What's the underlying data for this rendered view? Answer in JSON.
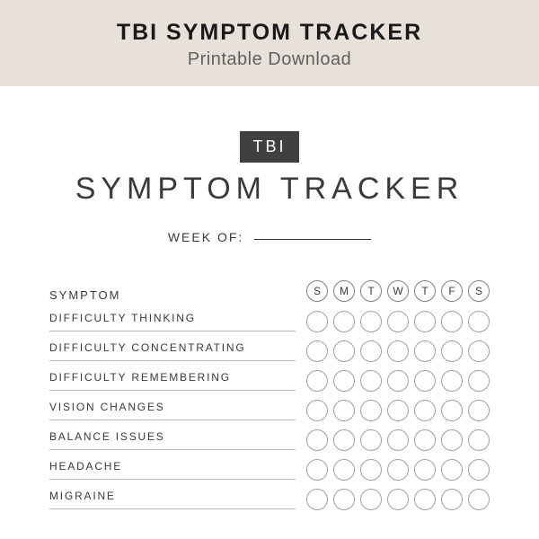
{
  "header": {
    "title": "TBI SYMPTOM TRACKER",
    "subtitle": "Printable Download",
    "band_color": "#e8e1d9"
  },
  "sheet": {
    "badge": "TBI",
    "badge_bg": "#404040",
    "title": "SYMPTOM TRACKER",
    "week_label": "WEEK OF:",
    "column_header": "SYMPTOM",
    "days": [
      "S",
      "M",
      "T",
      "W",
      "T",
      "F",
      "S"
    ],
    "symptoms": [
      "DIFFICULTY THINKING",
      "DIFFICULTY CONCENTRATING",
      "DIFFICULTY REMEMBERING",
      "VISION CHANGES",
      "BALANCE ISSUES",
      "HEADACHE",
      "MIGRAINE"
    ]
  },
  "colors": {
    "text_dark": "#1a1a1a",
    "text_med": "#3a3a3a",
    "text_light": "#606060",
    "circle_border": "#a0a0a0",
    "underline": "#b8b8b8"
  }
}
